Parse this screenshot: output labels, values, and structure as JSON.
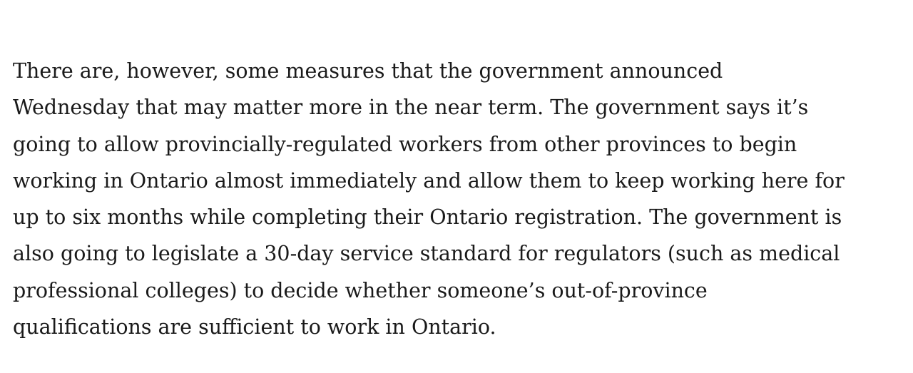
{
  "article": {
    "paragraph_lines": [
      "There are, however, some measures that the government announced",
      "Wednesday that may matter more in the near term. The government says it’s",
      "going to allow provincially-regulated workers from other provinces to begin",
      "working in Ontario almost immediately and allow them to keep working here for",
      "up to six months while completing their Ontario registration. The government is",
      "also going to legislate a 30-day service standard for regulators (such as medical",
      "professional colleges) to decide whether someone’s out-of-province",
      "qualifications are sufficient to work in Ontario."
    ]
  }
}
